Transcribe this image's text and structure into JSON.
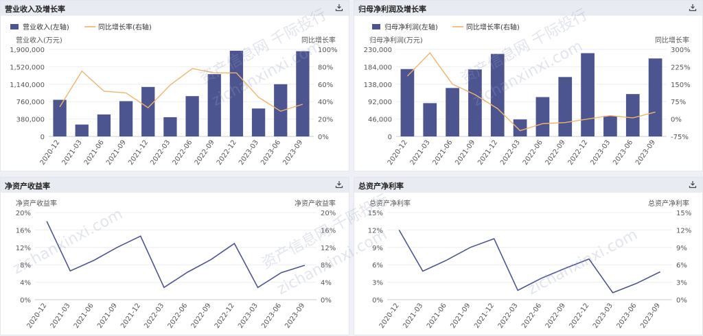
{
  "watermark": {
    "text_cn": "资产信息网 千际投行",
    "text_en": "zichanxinxi.com"
  },
  "panels": [
    {
      "title": "营业收入及增长率",
      "chart_data": {
        "type": "bar",
        "categories": [
          "2020-12",
          "2021-03",
          "2021-06",
          "2021-09",
          "2021-12",
          "2022-03",
          "2022-06",
          "2022-09",
          "2022-12",
          "2023-03",
          "2023-06",
          "2023-09"
        ],
        "series": [
          {
            "name": "营业收入(左轴)",
            "axis": "left",
            "type": "bar",
            "color": "#4c5590",
            "values": [
              800000,
              260000,
              480000,
              770000,
              1080000,
              420000,
              880000,
              1360000,
              1870000,
              610000,
              1140000,
              1860000
            ]
          },
          {
            "name": "同比增长率(右轴)",
            "axis": "right",
            "type": "line",
            "color": "#f2b36b",
            "values": [
              34,
              75,
              52,
              50,
              33,
              59,
              78,
              73,
              73,
              45,
              29,
              37
            ]
          }
        ],
        "ylabel_left": "营业收入(万元)",
        "ylabel_right": "同比增长率",
        "yticks_left": [
          "0",
          "380,000",
          "760,000",
          "1,140,000",
          "1,520,000",
          "1,900,000"
        ],
        "yticks_right": [
          "0%",
          "20%",
          "40%",
          "60%",
          "80%",
          "100%"
        ],
        "ylim_left": [
          0,
          1900000
        ],
        "ylim_right": [
          0,
          100
        ],
        "legend": "top-left"
      }
    },
    {
      "title": "归母净利润及增长率",
      "chart_data": {
        "type": "bar",
        "categories": [
          "2020-12",
          "2021-03",
          "2021-06",
          "2021-09",
          "2021-12",
          "2022-03",
          "2022-06",
          "2022-09",
          "2022-12",
          "2023-03",
          "2023-06",
          "2023-09"
        ],
        "series": [
          {
            "name": "归母净利润(左轴)",
            "axis": "left",
            "type": "bar",
            "color": "#4c5590",
            "values": [
              178000,
              88000,
              128000,
              177000,
              218000,
              45000,
              104000,
              157000,
              220000,
              54000,
              112000,
              206000
            ]
          },
          {
            "name": "同比增长率(右轴)",
            "axis": "right",
            "type": "line",
            "color": "#f2b36b",
            "values": [
              185,
              285,
              150,
              105,
              45,
              -50,
              -20,
              -15,
              0,
              15,
              5,
              30
            ]
          }
        ],
        "ylabel_left": "归母净利润(万元)",
        "ylabel_right": "同比增长率",
        "yticks_left": [
          "0",
          "46,000",
          "92,000",
          "138,000",
          "184,000",
          "230,000"
        ],
        "yticks_right": [
          "-75%",
          "0%",
          "75%",
          "150%",
          "225%",
          "300%"
        ],
        "ylim_left": [
          0,
          230000
        ],
        "ylim_right": [
          -75,
          300
        ],
        "legend": "top-left"
      }
    },
    {
      "title": "净资产收益率",
      "chart_data": {
        "type": "line",
        "categories": [
          "2020-12",
          "2021-03",
          "2021-06",
          "2021-09",
          "2021-12",
          "2022-03",
          "2022-06",
          "2022-09",
          "2022-12",
          "2023-03",
          "2023-06",
          "2023-09"
        ],
        "series": [
          {
            "axis": "left",
            "color": "#4c5590",
            "values": [
              18,
              6.6,
              9,
              12,
              14.6,
              2.8,
              6.3,
              9.2,
              12.9,
              2.8,
              6.2,
              7.9
            ]
          }
        ],
        "ylabel_left": "净资产收益率",
        "ylabel_right": "净资产收益率",
        "yticks_left": [
          "0%",
          "4%",
          "8%",
          "12%",
          "16%",
          "20%"
        ],
        "yticks_right": [
          "0%",
          "4%",
          "8%",
          "12%",
          "16%",
          "20%"
        ],
        "ylim_left": [
          0,
          20
        ],
        "ylim_right": [
          0,
          20
        ]
      }
    },
    {
      "title": "总资产净利率",
      "chart_data": {
        "type": "line",
        "categories": [
          "2020-12",
          "2021-03",
          "2021-06",
          "2021-09",
          "2021-12",
          "2022-03",
          "2022-06",
          "2022-09",
          "2022-12",
          "2023-03",
          "2023-06",
          "2023-09"
        ],
        "series": [
          {
            "axis": "left",
            "color": "#4c5590",
            "values": [
              12,
              4.9,
              6.8,
              9,
              10.5,
              1.6,
              3.7,
              5.4,
              7,
              1.2,
              2.8,
              4.8
            ]
          }
        ],
        "ylabel_left": "总资产净利率",
        "ylabel_right": "总资产净利率",
        "yticks_left": [
          "0%",
          "3%",
          "6%",
          "9%",
          "12%",
          "15%"
        ],
        "yticks_right": [
          "0%",
          "3%",
          "6%",
          "9%",
          "12%",
          "15%"
        ],
        "ylim_left": [
          0,
          15
        ],
        "ylim_right": [
          0,
          15
        ]
      }
    }
  ]
}
